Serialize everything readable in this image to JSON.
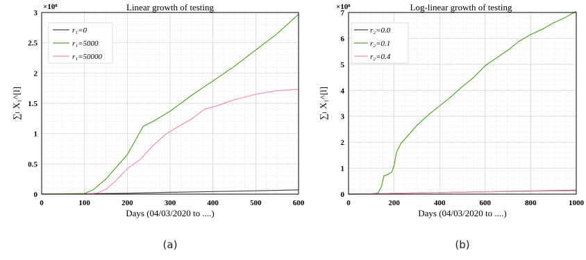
{
  "panels": [
    {
      "label": "(a)",
      "title": "Linear growth of testing",
      "xlabel": "Days (04/03/2020 to ....)",
      "ylabel": "∑ₗ X₁^[l]",
      "exponent": "×10⁸",
      "xlim": [
        0,
        600
      ],
      "ylim": [
        0,
        300000000
      ],
      "xticks": [
        0,
        100,
        200,
        300,
        400,
        500,
        600
      ],
      "yticks": [
        0,
        0.5,
        1,
        1.5,
        2,
        2.5,
        3
      ],
      "xtick_labels": [
        "0",
        "100",
        "200",
        "300",
        "400",
        "500",
        "600"
      ],
      "ytick_labels": [
        "0",
        "0.5",
        "1",
        "1.5",
        "2",
        "2.5",
        "3"
      ],
      "legend_title": "",
      "legend": [
        "r₁=0",
        "r₁=5000",
        "r₁=50000"
      ]
    },
    {
      "label": "(b)",
      "title": "Log-linear growth of testing",
      "xlabel": "Days (04/03/2020 to ....)",
      "ylabel": "∑ₗ X₁^[l]",
      "exponent": "×10⁸",
      "xlim": [
        0,
        1000
      ],
      "ylim": [
        0,
        700000000
      ],
      "xticks": [
        0,
        200,
        400,
        600,
        800,
        1000
      ],
      "yticks": [
        0,
        1,
        2,
        3,
        4,
        5,
        6,
        7
      ],
      "xtick_labels": [
        "0",
        "200",
        "400",
        "600",
        "800",
        "1000"
      ],
      "ytick_labels": [
        "0",
        "1",
        "2",
        "3",
        "4",
        "5",
        "6",
        "7"
      ],
      "legend": [
        "r₂=0.0",
        "r₂=0.1",
        "r₂=0.4"
      ]
    }
  ],
  "colors": {
    "series1": "#444444",
    "series2": "#5aa02c",
    "series3": "#f090b0"
  },
  "chart_data": [
    {
      "type": "line",
      "title": "Linear growth of testing",
      "xlabel": "Days (04/03/2020 to ....)",
      "ylabel": "∑ₗ X₁^[l]",
      "xlim": [
        0,
        600
      ],
      "ylim": [
        0,
        300000000
      ],
      "legend": "top-left",
      "grid": true,
      "series": [
        {
          "name": "r₁=0",
          "x": [
            0,
            100,
            200,
            300,
            400,
            500,
            600
          ],
          "y": [
            0,
            500000,
            1500000,
            3000000,
            4200000,
            5500000,
            7000000
          ]
        },
        {
          "name": "r₁=5000",
          "x": [
            0,
            100,
            120,
            150,
            200,
            237,
            260,
            300,
            350,
            400,
            450,
            500,
            550,
            600
          ],
          "y": [
            0,
            1000000,
            7000000,
            25000000,
            65000000,
            112000000,
            120000000,
            137000000,
            163000000,
            187000000,
            211000000,
            238000000,
            265000000,
            297000000
          ]
        },
        {
          "name": "r₁=50000",
          "x": [
            0,
            100,
            130,
            150,
            170,
            200,
            230,
            260,
            290,
            320,
            350,
            380,
            410,
            450,
            500,
            550,
            600
          ],
          "y": [
            0,
            0,
            2000000,
            8000000,
            20000000,
            42000000,
            57000000,
            80000000,
            99000000,
            112000000,
            124000000,
            140000000,
            146000000,
            156000000,
            165000000,
            171000000,
            173000000
          ]
        }
      ]
    },
    {
      "type": "line",
      "title": "Log-linear growth of testing",
      "xlabel": "Days (04/03/2020 to ....)",
      "ylabel": "∑ₗ X₁^[l]",
      "xlim": [
        0,
        1000
      ],
      "ylim": [
        0,
        700000000
      ],
      "legend": "top-left",
      "grid": true,
      "series": [
        {
          "name": "r₂=0.0",
          "x": [
            0,
            100,
            200,
            400,
            600,
            800,
            1000
          ],
          "y": [
            0,
            1000000,
            3000000,
            6000000,
            9000000,
            12000000,
            15000000
          ]
        },
        {
          "name": "r₂=0.1",
          "x": [
            0,
            100,
            130,
            145,
            155,
            175,
            190,
            200,
            210,
            230,
            260,
            300,
            350,
            400,
            450,
            500,
            550,
            600,
            650,
            700,
            750,
            800,
            850,
            900,
            950,
            1000
          ],
          "y": [
            0,
            0,
            5000000,
            30000000,
            70000000,
            77000000,
            85000000,
            110000000,
            160000000,
            195000000,
            225000000,
            265000000,
            305000000,
            340000000,
            375000000,
            415000000,
            450000000,
            495000000,
            525000000,
            555000000,
            590000000,
            615000000,
            635000000,
            660000000,
            680000000,
            705000000
          ]
        },
        {
          "name": "r₂=0.4",
          "x": [
            0,
            100,
            200,
            400,
            600,
            800,
            1000
          ],
          "y": [
            0,
            1000000,
            3000000,
            6000000,
            9000000,
            11000000,
            13000000
          ]
        }
      ]
    }
  ]
}
